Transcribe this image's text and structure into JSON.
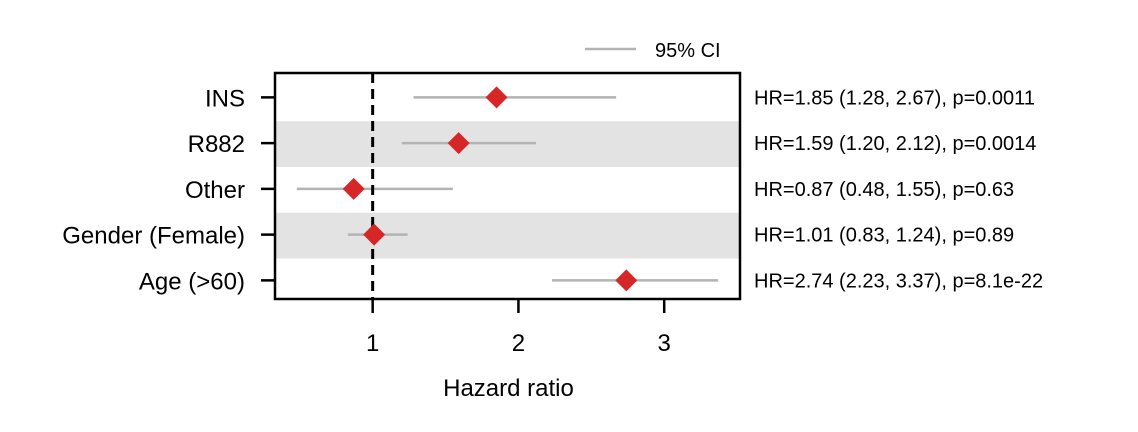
{
  "chart_data": {
    "type": "scatter",
    "xlabel": "Hazard ratio",
    "x_ticks": [
      1,
      2,
      3
    ],
    "xlim": [
      0.33,
      3.52
    ],
    "reference_line": 1,
    "legend": {
      "label": "95% CI",
      "placement": "top-right-outside"
    },
    "colors": {
      "point": "#d62728",
      "ci": "#b3b3b3",
      "band": "#e3e3e3",
      "reference": "#000000"
    },
    "rows": [
      {
        "label": "INS",
        "hr": 1.85,
        "ci_low": 1.28,
        "ci_high": 2.67,
        "shaded": false,
        "annotation": "HR=1.85 (1.28, 2.67), p=0.0011"
      },
      {
        "label": "R882",
        "hr": 1.59,
        "ci_low": 1.2,
        "ci_high": 2.12,
        "shaded": true,
        "annotation": "HR=1.59 (1.20, 2.12), p=0.0014"
      },
      {
        "label": "Other",
        "hr": 0.87,
        "ci_low": 0.48,
        "ci_high": 1.55,
        "shaded": false,
        "annotation": "HR=0.87 (0.48, 1.55), p=0.63"
      },
      {
        "label": "Gender (Female)",
        "hr": 1.01,
        "ci_low": 0.83,
        "ci_high": 1.24,
        "shaded": true,
        "annotation": "HR=1.01 (0.83, 1.24), p=0.89"
      },
      {
        "label": "Age (>60)",
        "hr": 2.74,
        "ci_low": 2.23,
        "ci_high": 3.37,
        "shaded": false,
        "annotation": "HR=2.74 (2.23, 3.37), p=8.1e-22"
      }
    ]
  }
}
